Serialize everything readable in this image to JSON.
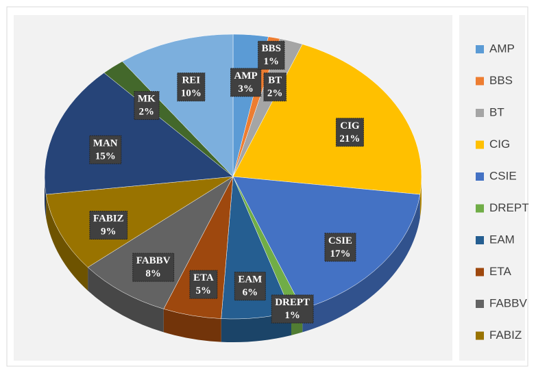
{
  "chart_data": {
    "type": "pie",
    "categories": [
      "AMP",
      "BBS",
      "BT",
      "CIG",
      "CSIE",
      "DREPT",
      "EAM",
      "ETA",
      "FABBV",
      "FABIZ",
      "MAN",
      "MK",
      "REI"
    ],
    "values": [
      3,
      1,
      2,
      21,
      17,
      1,
      6,
      5,
      8,
      9,
      15,
      2,
      10
    ],
    "value_labels": [
      "3%",
      "1%",
      "2%",
      "21%",
      "17%",
      "1%",
      "6%",
      "5%",
      "8%",
      "9%",
      "15%",
      "2%",
      "10%"
    ],
    "colors": [
      "#5b9bd5",
      "#ed7d31",
      "#a5a5a5",
      "#ffc000",
      "#4472c4",
      "#70ad47",
      "#255e91",
      "#9e480e",
      "#636363",
      "#997300",
      "#264478",
      "#43682b",
      "#7cafdd"
    ],
    "legend": "right"
  }
}
